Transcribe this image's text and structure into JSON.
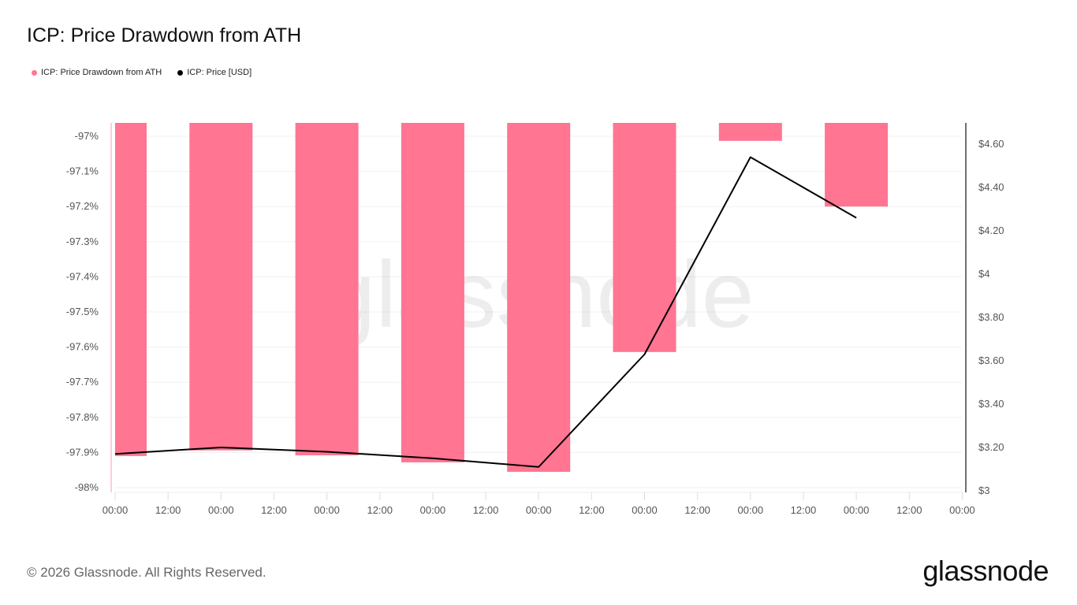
{
  "title": "ICP: Price Drawdown from ATH",
  "legend": [
    {
      "label": "ICP: Price Drawdown from ATH",
      "color": "#ff7592"
    },
    {
      "label": "ICP: Price [USD]",
      "color": "#000000"
    }
  ],
  "footer": "© 2026 Glassnode. All Rights Reserved.",
  "logo": "glassnode",
  "watermark": "glassnode",
  "chart_data": {
    "type": "bar+line",
    "title": "ICP: Price Drawdown from ATH",
    "x_tick_labels": [
      "00:00",
      "12:00",
      "00:00",
      "12:00",
      "00:00",
      "12:00",
      "00:00",
      "12:00",
      "00:00",
      "12:00",
      "00:00",
      "12:00",
      "00:00",
      "12:00",
      "00:00",
      "12:00",
      "00:00"
    ],
    "left_axis": {
      "ticks": [
        "-97%",
        "-97.1%",
        "-97.2%",
        "-97.3%",
        "-97.4%",
        "-97.5%",
        "-97.6%",
        "-97.7%",
        "-97.8%",
        "-97.9%",
        "-98%"
      ],
      "range": [
        -98.01,
        -96.96
      ]
    },
    "right_axis": {
      "ticks": [
        "$3",
        "$3.20",
        "$3.40",
        "$3.60",
        "$3.80",
        "$4",
        "$4.20",
        "$4.40",
        "$4.60"
      ],
      "range": [
        3.0,
        4.67
      ]
    },
    "grid": true,
    "legend_position": "top-left",
    "series": [
      {
        "name": "ICP: Price Drawdown from ATH",
        "type": "bar",
        "axis": "left",
        "color": "#ff7592",
        "values": [
          -97.91,
          -97.894,
          -97.908,
          -97.928,
          -97.955,
          -97.614,
          -97.013,
          -97.2
        ]
      },
      {
        "name": "ICP: Price [USD]",
        "type": "line",
        "axis": "right",
        "color": "#000000",
        "values": [
          3.17,
          3.2,
          3.18,
          3.15,
          3.11,
          3.63,
          4.54,
          4.26
        ]
      }
    ]
  }
}
